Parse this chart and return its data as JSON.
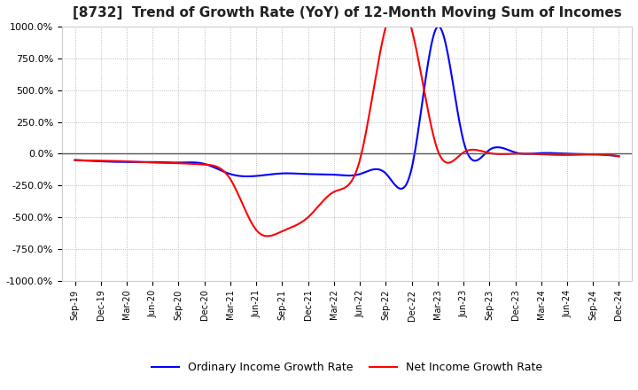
{
  "title": "[8732]  Trend of Growth Rate (YoY) of 12-Month Moving Sum of Incomes",
  "title_fontsize": 11,
  "background_color": "#ffffff",
  "plot_background_color": "#ffffff",
  "grid_color": "#aaaaaa",
  "ylim": [
    -1000,
    1000
  ],
  "yticks": [
    -1000,
    -750,
    -500,
    -250,
    0,
    250,
    500,
    750,
    1000
  ],
  "ytick_labels": [
    "-1000.0%",
    "-750.0%",
    "-500.0%",
    "-250.0%",
    "0.0%",
    "250.0%",
    "500.0%",
    "750.0%",
    "1000.0%"
  ],
  "legend_labels": [
    "Ordinary Income Growth Rate",
    "Net Income Growth Rate"
  ],
  "line_colors": [
    "#0000ff",
    "#ff0000"
  ],
  "ordinary_values": [
    -50,
    -60,
    -65,
    -65,
    -70,
    -80,
    -160,
    -175,
    -155,
    -160,
    -165,
    -160,
    -155,
    -115,
    1000,
    100,
    30,
    10,
    5,
    0,
    -5,
    -20
  ],
  "net_values": [
    -50,
    -55,
    -60,
    -70,
    -75,
    -85,
    -200,
    -600,
    -610,
    -500,
    -300,
    -50,
    1000,
    980,
    30,
    10,
    5,
    0,
    -5,
    -10,
    -5,
    -20
  ],
  "xtick_labels": [
    "Sep-19",
    "Dec-19",
    "Mar-20",
    "Jun-20",
    "Sep-20",
    "Dec-20",
    "Mar-21",
    "Jun-21",
    "Sep-21",
    "Dec-21",
    "Mar-22",
    "Jun-22",
    "Sep-22",
    "Dec-22",
    "Mar-23",
    "Jun-23",
    "Sep-23",
    "Dec-23",
    "Mar-24",
    "Jun-24",
    "Sep-24",
    "Dec-24"
  ]
}
